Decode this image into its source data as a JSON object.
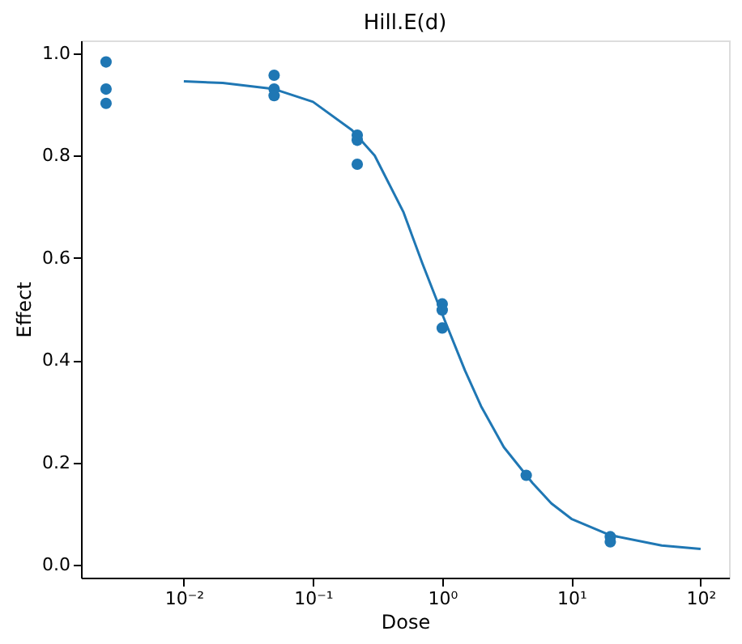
{
  "chart_data": {
    "type": "scatter",
    "title": "Hill.E(d)",
    "xlabel": "Dose",
    "ylabel": "Effect",
    "log": "x",
    "grid": false,
    "marker": "circle",
    "xlim": [
      0.0016,
      166
    ],
    "ylim": [
      -0.025,
      1.025
    ],
    "xticks": [
      {
        "value": 0.01,
        "label": "10⁻²"
      },
      {
        "value": 0.1,
        "label": "10⁻¹"
      },
      {
        "value": 1,
        "label": "10⁰"
      },
      {
        "value": 10,
        "label": "10¹"
      },
      {
        "value": 100,
        "label": "10²"
      }
    ],
    "yticks": [
      {
        "value": 0,
        "label": "0.0"
      },
      {
        "value": 0.2,
        "label": "0.2"
      },
      {
        "value": 0.4,
        "label": "0.4"
      },
      {
        "value": 0.6,
        "label": "0.6"
      },
      {
        "value": 0.8,
        "label": "0.8"
      },
      {
        "value": 1,
        "label": "1.0"
      }
    ],
    "series": [
      {
        "color": "#1f77b4",
        "x": [
          0.0025,
          0.0025,
          0.0025,
          0.05,
          0.05,
          0.05,
          0.22,
          0.22,
          0.22,
          1,
          1,
          1,
          4.47,
          20,
          20
        ],
        "values": [
          0.983,
          0.93,
          0.902,
          0.957,
          0.93,
          0.917,
          0.84,
          0.83,
          0.783,
          0.51,
          0.498,
          0.463,
          0.175,
          0.055,
          0.045
        ]
      },
      {
        "type": "line",
        "color": "#1f77b4",
        "line_style": "solid",
        "marker": "none",
        "x": [
          0.01,
          0.02,
          0.05,
          0.1,
          0.2,
          0.3,
          0.5,
          0.7,
          1,
          1.5,
          2,
          3,
          5,
          7,
          10,
          20,
          50,
          100
        ],
        "values": [
          0.945,
          0.942,
          0.93,
          0.905,
          0.85,
          0.8,
          0.69,
          0.59,
          0.49,
          0.38,
          0.31,
          0.23,
          0.16,
          0.12,
          0.09,
          0.058,
          0.038,
          0.031
        ]
      }
    ]
  }
}
